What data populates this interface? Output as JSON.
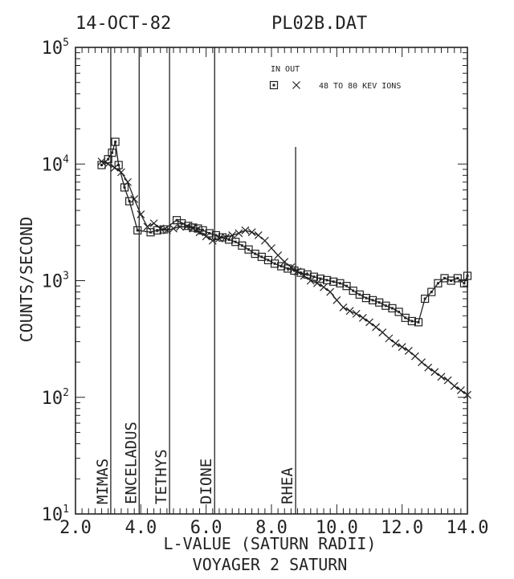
{
  "header": {
    "date": "14-OCT-82",
    "file": "PL02B.DAT"
  },
  "chart_data": {
    "type": "line",
    "title": "",
    "xlabel": "L-VALUE (SATURN RADII)",
    "caption": "VOYAGER 2 SATURN",
    "ylabel": "COUNTS/SECOND",
    "xlim": [
      2.0,
      14.0
    ],
    "ylim": [
      10,
      100000
    ],
    "yscale": "log",
    "x_ticks": [
      "2.0",
      "4.0",
      "6.0",
      "8.0",
      "10.0",
      "12.0",
      "14.0"
    ],
    "y_ticks": [
      {
        "base": "10",
        "exp": "1",
        "value": 10
      },
      {
        "base": "10",
        "exp": "2",
        "value": 100
      },
      {
        "base": "10",
        "exp": "3",
        "value": 1000
      },
      {
        "base": "10",
        "exp": "4",
        "value": 10000
      },
      {
        "base": "10",
        "exp": "5",
        "value": 100000
      }
    ],
    "legend": {
      "placement": "top-right",
      "header": "IN OUT",
      "label": "48 TO 80 KEV IONS"
    },
    "moons": [
      {
        "name": "MIMAS",
        "L": 3.08,
        "top": 100000
      },
      {
        "name": "ENCELADUS",
        "L": 3.95,
        "top": 100000
      },
      {
        "name": "TETHYS",
        "L": 4.88,
        "top": 100000
      },
      {
        "name": "DIONE",
        "L": 6.26,
        "top": 100000
      },
      {
        "name": "RHEA",
        "L": 8.74,
        "top": 14000
      }
    ],
    "series": [
      {
        "name": "IN",
        "marker": "square",
        "x": [
          2.8,
          3.0,
          3.12,
          3.22,
          3.32,
          3.5,
          3.65,
          3.9,
          4.3,
          4.5,
          4.7,
          5.1,
          5.25,
          5.45,
          5.6,
          5.75,
          5.9,
          6.1,
          6.3,
          6.5,
          6.7,
          6.9,
          7.1,
          7.3,
          7.5,
          7.7,
          7.9,
          8.1,
          8.3,
          8.5,
          8.7,
          8.9,
          9.1,
          9.3,
          9.5,
          9.7,
          9.9,
          10.1,
          10.3,
          10.5,
          10.7,
          10.9,
          11.1,
          11.3,
          11.5,
          11.7,
          11.9,
          12.1,
          12.3,
          12.5,
          12.7,
          12.9,
          13.1,
          13.3,
          13.5,
          13.7,
          13.9,
          14.0
        ],
        "y": [
          9800,
          11000,
          12500,
          15500,
          9800,
          6300,
          4800,
          2700,
          2600,
          2700,
          2750,
          3300,
          3100,
          2950,
          2850,
          2800,
          2700,
          2550,
          2450,
          2350,
          2250,
          2150,
          2000,
          1850,
          1700,
          1600,
          1500,
          1400,
          1330,
          1270,
          1220,
          1170,
          1130,
          1080,
          1040,
          1010,
          980,
          950,
          900,
          820,
          760,
          710,
          680,
          650,
          610,
          580,
          540,
          480,
          450,
          440,
          700,
          800,
          950,
          1050,
          1000,
          1050,
          950,
          1100
        ]
      },
      {
        "name": "OUT",
        "marker": "x",
        "x": [
          2.8,
          3.0,
          3.2,
          3.4,
          3.6,
          3.8,
          4.0,
          4.2,
          4.4,
          4.6,
          4.8,
          5.0,
          5.2,
          5.4,
          5.6,
          5.8,
          6.0,
          6.2,
          6.4,
          6.6,
          6.8,
          7.0,
          7.2,
          7.4,
          7.6,
          7.8,
          8.0,
          8.2,
          8.4,
          8.6,
          8.8,
          9.0,
          9.2,
          9.4,
          9.6,
          9.8,
          10.0,
          10.2,
          10.4,
          10.6,
          10.8,
          11.0,
          11.2,
          11.4,
          11.6,
          11.8,
          12.0,
          12.2,
          12.4,
          12.6,
          12.8,
          13.0,
          13.2,
          13.4,
          13.6,
          13.8,
          14.0
        ],
        "y": [
          10500,
          10000,
          9300,
          8500,
          7000,
          5000,
          3700,
          2900,
          3100,
          2800,
          2700,
          2800,
          2900,
          2900,
          2800,
          2600,
          2400,
          2200,
          2300,
          2350,
          2450,
          2550,
          2700,
          2600,
          2450,
          2200,
          1900,
          1650,
          1450,
          1300,
          1200,
          1100,
          1000,
          950,
          880,
          800,
          680,
          590,
          550,
          520,
          480,
          440,
          400,
          360,
          320,
          290,
          270,
          250,
          225,
          200,
          180,
          165,
          150,
          140,
          125,
          115,
          105
        ]
      }
    ]
  }
}
